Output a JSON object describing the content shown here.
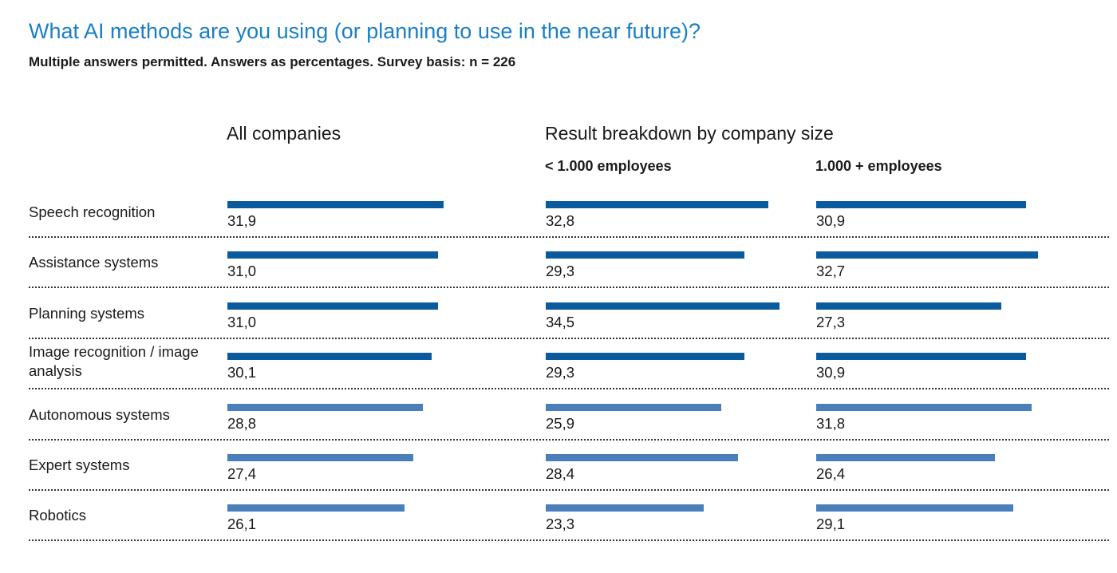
{
  "title": "What AI methods are you using (or planning to use in the near future)?",
  "subtitle": "Multiple answers permitted. Answers as percentages. Survey basis: n = 226",
  "chart_data": {
    "type": "bar",
    "orientation": "horizontal",
    "title": "What AI methods are you using (or planning to use in the near future)?",
    "subtitle": "Multiple answers permitted. Answers as percentages. Survey basis: n = 226",
    "group_headers": {
      "all": "All companies",
      "breakdown": "Result breakdown by company size"
    },
    "categories": [
      "Speech recognition",
      "Assistance systems",
      "Planning systems",
      "Image recognition / image analysis",
      "Autonomous systems",
      "Expert systems",
      "Robotics"
    ],
    "series": [
      {
        "name": "All companies",
        "values": [
          31.9,
          31.0,
          31.0,
          30.1,
          28.8,
          27.4,
          26.1
        ],
        "labels": [
          "31,9",
          "31,0",
          "31,0",
          "30,1",
          "28,8",
          "27,4",
          "26,1"
        ]
      },
      {
        "name": "< 1.000 employees",
        "values": [
          32.8,
          29.3,
          34.5,
          29.3,
          25.9,
          28.4,
          23.3
        ],
        "labels": [
          "32,8",
          "29,3",
          "34,5",
          "29,3",
          "25,9",
          "28,4",
          "23,3"
        ]
      },
      {
        "name": "1.000 + employees",
        "values": [
          30.9,
          32.7,
          27.3,
          30.9,
          31.8,
          26.4,
          29.1
        ],
        "labels": [
          "30,9",
          "32,7",
          "27,3",
          "30,9",
          "31,8",
          "26,4",
          "29,1"
        ]
      }
    ],
    "colors": {
      "dark_bar": "#0a5a9e",
      "light_bar": "#4a7fbb"
    },
    "dark_rows": 4
  }
}
